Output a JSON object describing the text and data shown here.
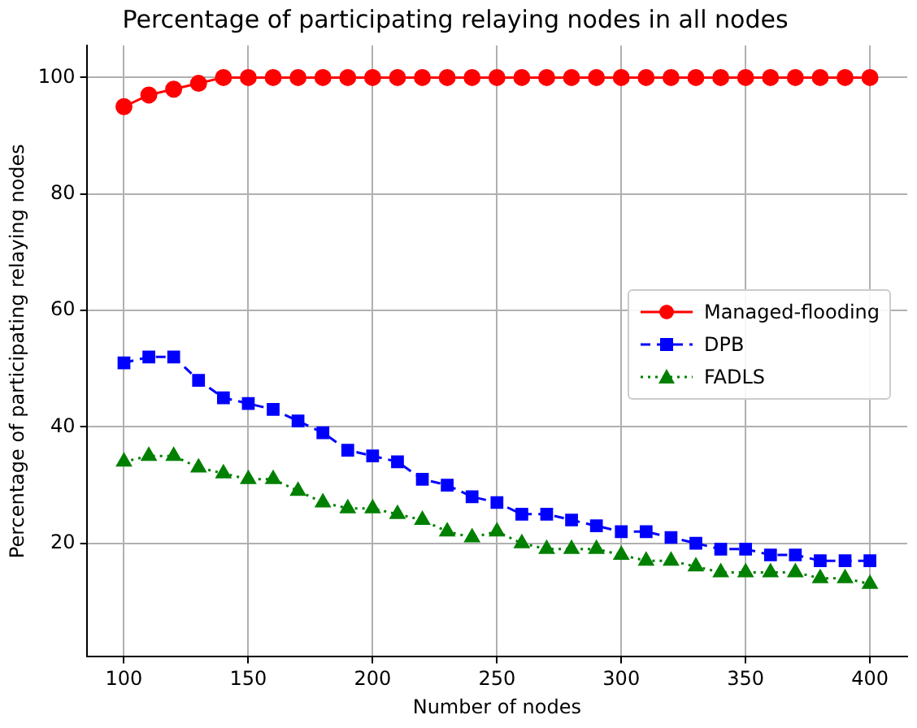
{
  "chart_data": {
    "type": "line",
    "title": "Percentage of participating relaying nodes in all nodes",
    "xlabel": "Number of nodes",
    "ylabel": "Percentage of participating relaying nodes",
    "x": [
      100,
      110,
      120,
      130,
      140,
      150,
      160,
      170,
      180,
      190,
      200,
      210,
      220,
      230,
      240,
      250,
      260,
      270,
      280,
      290,
      300,
      310,
      320,
      330,
      340,
      350,
      360,
      370,
      380,
      390,
      400
    ],
    "xlim": [
      85,
      415
    ],
    "xticks": [
      100,
      150,
      200,
      250,
      300,
      350,
      400
    ],
    "ylim": [
      0.5,
      105.5
    ],
    "yticks": [
      20,
      40,
      60,
      80,
      100
    ],
    "grid": true,
    "legend": "right",
    "series": [
      {
        "name": "Managed-flooding",
        "color": "#ff0000",
        "marker": "circle",
        "line_style": "solid",
        "values": [
          95,
          97,
          98,
          99,
          100,
          100,
          100,
          100,
          100,
          100,
          100,
          100,
          100,
          100,
          100,
          100,
          100,
          100,
          100,
          100,
          100,
          100,
          100,
          100,
          100,
          100,
          100,
          100,
          100,
          100,
          100
        ]
      },
      {
        "name": "DPB",
        "color": "#0000ff",
        "marker": "square",
        "line_style": "dashed",
        "values": [
          51,
          52,
          52,
          48,
          45,
          44,
          43,
          41,
          39,
          36,
          35,
          34,
          31,
          30,
          28,
          27,
          25,
          25,
          24,
          23,
          22,
          22,
          21,
          20,
          19,
          19,
          18,
          18,
          17,
          17,
          17
        ]
      },
      {
        "name": "FADLS",
        "color": "#008000",
        "marker": "triangle",
        "line_style": "dotted",
        "values": [
          34,
          35,
          35,
          33,
          32,
          31,
          31,
          29,
          27,
          26,
          26,
          25,
          24,
          22,
          21,
          22,
          20,
          19,
          19,
          19,
          18,
          17,
          17,
          16,
          15,
          15,
          15,
          15,
          14,
          14,
          13
        ]
      }
    ]
  }
}
